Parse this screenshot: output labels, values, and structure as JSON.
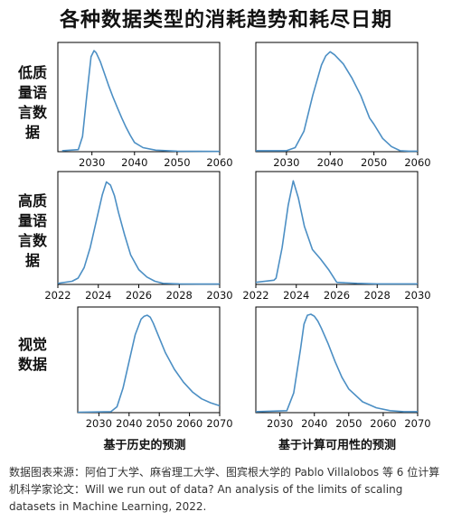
{
  "title": "各种数据类型的消耗趋势和耗尽日期",
  "row_labels": [
    "低质量语言数据",
    "高质量语言数据",
    "视觉数据"
  ],
  "col_labels": [
    "基于历史的预测",
    "基于计算可用性的预测"
  ],
  "source": "数据图表来源：阿伯丁大学、麻省理工大学、图宾根大学的 Pablo Villalobos 等 6 位计算机科学家论文：Will we run out of data? An analysis of the limits of scaling datasets in Machine Learning, 2022.",
  "colors": {
    "line": "#4c8fc4",
    "axis": "#000000"
  },
  "chart_data": [
    {
      "type": "line",
      "row": "低质量语言数据",
      "col": "基于历史的预测",
      "xlim": [
        2022,
        2060
      ],
      "ylim": [
        0,
        1
      ],
      "xticks": [
        2030,
        2040,
        2050,
        2060
      ],
      "x": [
        2023,
        2026.8,
        2027.8,
        2028.8,
        2029.8,
        2030.5,
        2031,
        2032,
        2033,
        2034,
        2035,
        2036,
        2037,
        2038,
        2039,
        2040,
        2042,
        2045,
        2050,
        2060
      ],
      "y": [
        0.01,
        0.02,
        0.15,
        0.55,
        0.93,
        0.99,
        0.97,
        0.88,
        0.76,
        0.64,
        0.53,
        0.43,
        0.33,
        0.24,
        0.16,
        0.09,
        0.04,
        0.015,
        0.005,
        0.003
      ]
    },
    {
      "type": "line",
      "row": "低质量语言数据",
      "col": "基于计算可用性的预测",
      "xlim": [
        2023,
        2060
      ],
      "ylim": [
        0,
        1
      ],
      "xticks": [
        2030,
        2040,
        2050,
        2060
      ],
      "x": [
        2023,
        2030,
        2032,
        2034,
        2036,
        2038,
        2039,
        2040,
        2041,
        2043,
        2045,
        2047,
        2049,
        2050,
        2052,
        2054,
        2056,
        2058,
        2060
      ],
      "y": [
        0.01,
        0.01,
        0.04,
        0.2,
        0.55,
        0.85,
        0.94,
        0.98,
        0.95,
        0.86,
        0.72,
        0.55,
        0.33,
        0.27,
        0.13,
        0.05,
        0.01,
        0.005,
        0.005
      ]
    },
    {
      "type": "line",
      "row": "高质量语言数据",
      "col": "基于历史的预测",
      "xlim": [
        2022,
        2030
      ],
      "ylim": [
        0,
        1
      ],
      "xticks": [
        2022,
        2024,
        2026,
        2028,
        2030
      ],
      "x": [
        2022,
        2022.7,
        2023.0,
        2023.3,
        2023.6,
        2023.9,
        2024.2,
        2024.4,
        2024.6,
        2024.8,
        2025.0,
        2025.3,
        2025.6,
        2026.0,
        2026.4,
        2026.8,
        2027.2,
        2028,
        2029,
        2030
      ],
      "y": [
        0.01,
        0.03,
        0.06,
        0.16,
        0.35,
        0.6,
        0.85,
        0.97,
        0.94,
        0.84,
        0.68,
        0.47,
        0.28,
        0.14,
        0.07,
        0.03,
        0.01,
        0.005,
        0.003,
        0.003
      ]
    },
    {
      "type": "line",
      "row": "高质量语言数据",
      "col": "基于计算可用性的预测",
      "xlim": [
        2022,
        2030
      ],
      "ylim": [
        0,
        1
      ],
      "xticks": [
        2022,
        2024,
        2026,
        2028,
        2030
      ],
      "x": [
        2022,
        2022.9,
        2023.0,
        2023.3,
        2023.6,
        2023.85,
        2024.1,
        2024.4,
        2024.8,
        2025.2,
        2025.6,
        2026.0,
        2027,
        2028,
        2029,
        2030
      ],
      "y": [
        0.02,
        0.04,
        0.06,
        0.35,
        0.75,
        0.98,
        0.82,
        0.55,
        0.33,
        0.24,
        0.14,
        0.02,
        0.01,
        0.005,
        0.005,
        0.005
      ]
    },
    {
      "type": "line",
      "row": "视觉数据",
      "col": "基于历史的预测",
      "xlim": [
        2023,
        2070
      ],
      "ylim": [
        0,
        1
      ],
      "xticks": [
        2030,
        2040,
        2050,
        2060,
        2070
      ],
      "x": [
        2023,
        2034,
        2036,
        2038,
        2040,
        2042,
        2044,
        2045,
        2046,
        2047,
        2048,
        2050,
        2052,
        2055,
        2058,
        2061,
        2064,
        2067,
        2070
      ],
      "y": [
        0.005,
        0.01,
        0.06,
        0.25,
        0.52,
        0.79,
        0.95,
        0.98,
        0.99,
        0.97,
        0.91,
        0.76,
        0.61,
        0.44,
        0.31,
        0.21,
        0.14,
        0.1,
        0.07
      ]
    },
    {
      "type": "line",
      "row": "视觉数据",
      "col": "基于计算可用性的预测",
      "xlim": [
        2023,
        2070
      ],
      "ylim": [
        0,
        1
      ],
      "xticks": [
        2030,
        2040,
        2050,
        2060,
        2070
      ],
      "x": [
        2023,
        2032,
        2034,
        2036,
        2037,
        2038,
        2039,
        2040,
        2041,
        2042,
        2044,
        2046,
        2048,
        2050,
        2054,
        2058,
        2062,
        2066,
        2070
      ],
      "y": [
        0.01,
        0.02,
        0.2,
        0.65,
        0.9,
        0.99,
        1.0,
        0.98,
        0.93,
        0.86,
        0.7,
        0.52,
        0.36,
        0.24,
        0.11,
        0.05,
        0.02,
        0.01,
        0.01
      ]
    }
  ]
}
